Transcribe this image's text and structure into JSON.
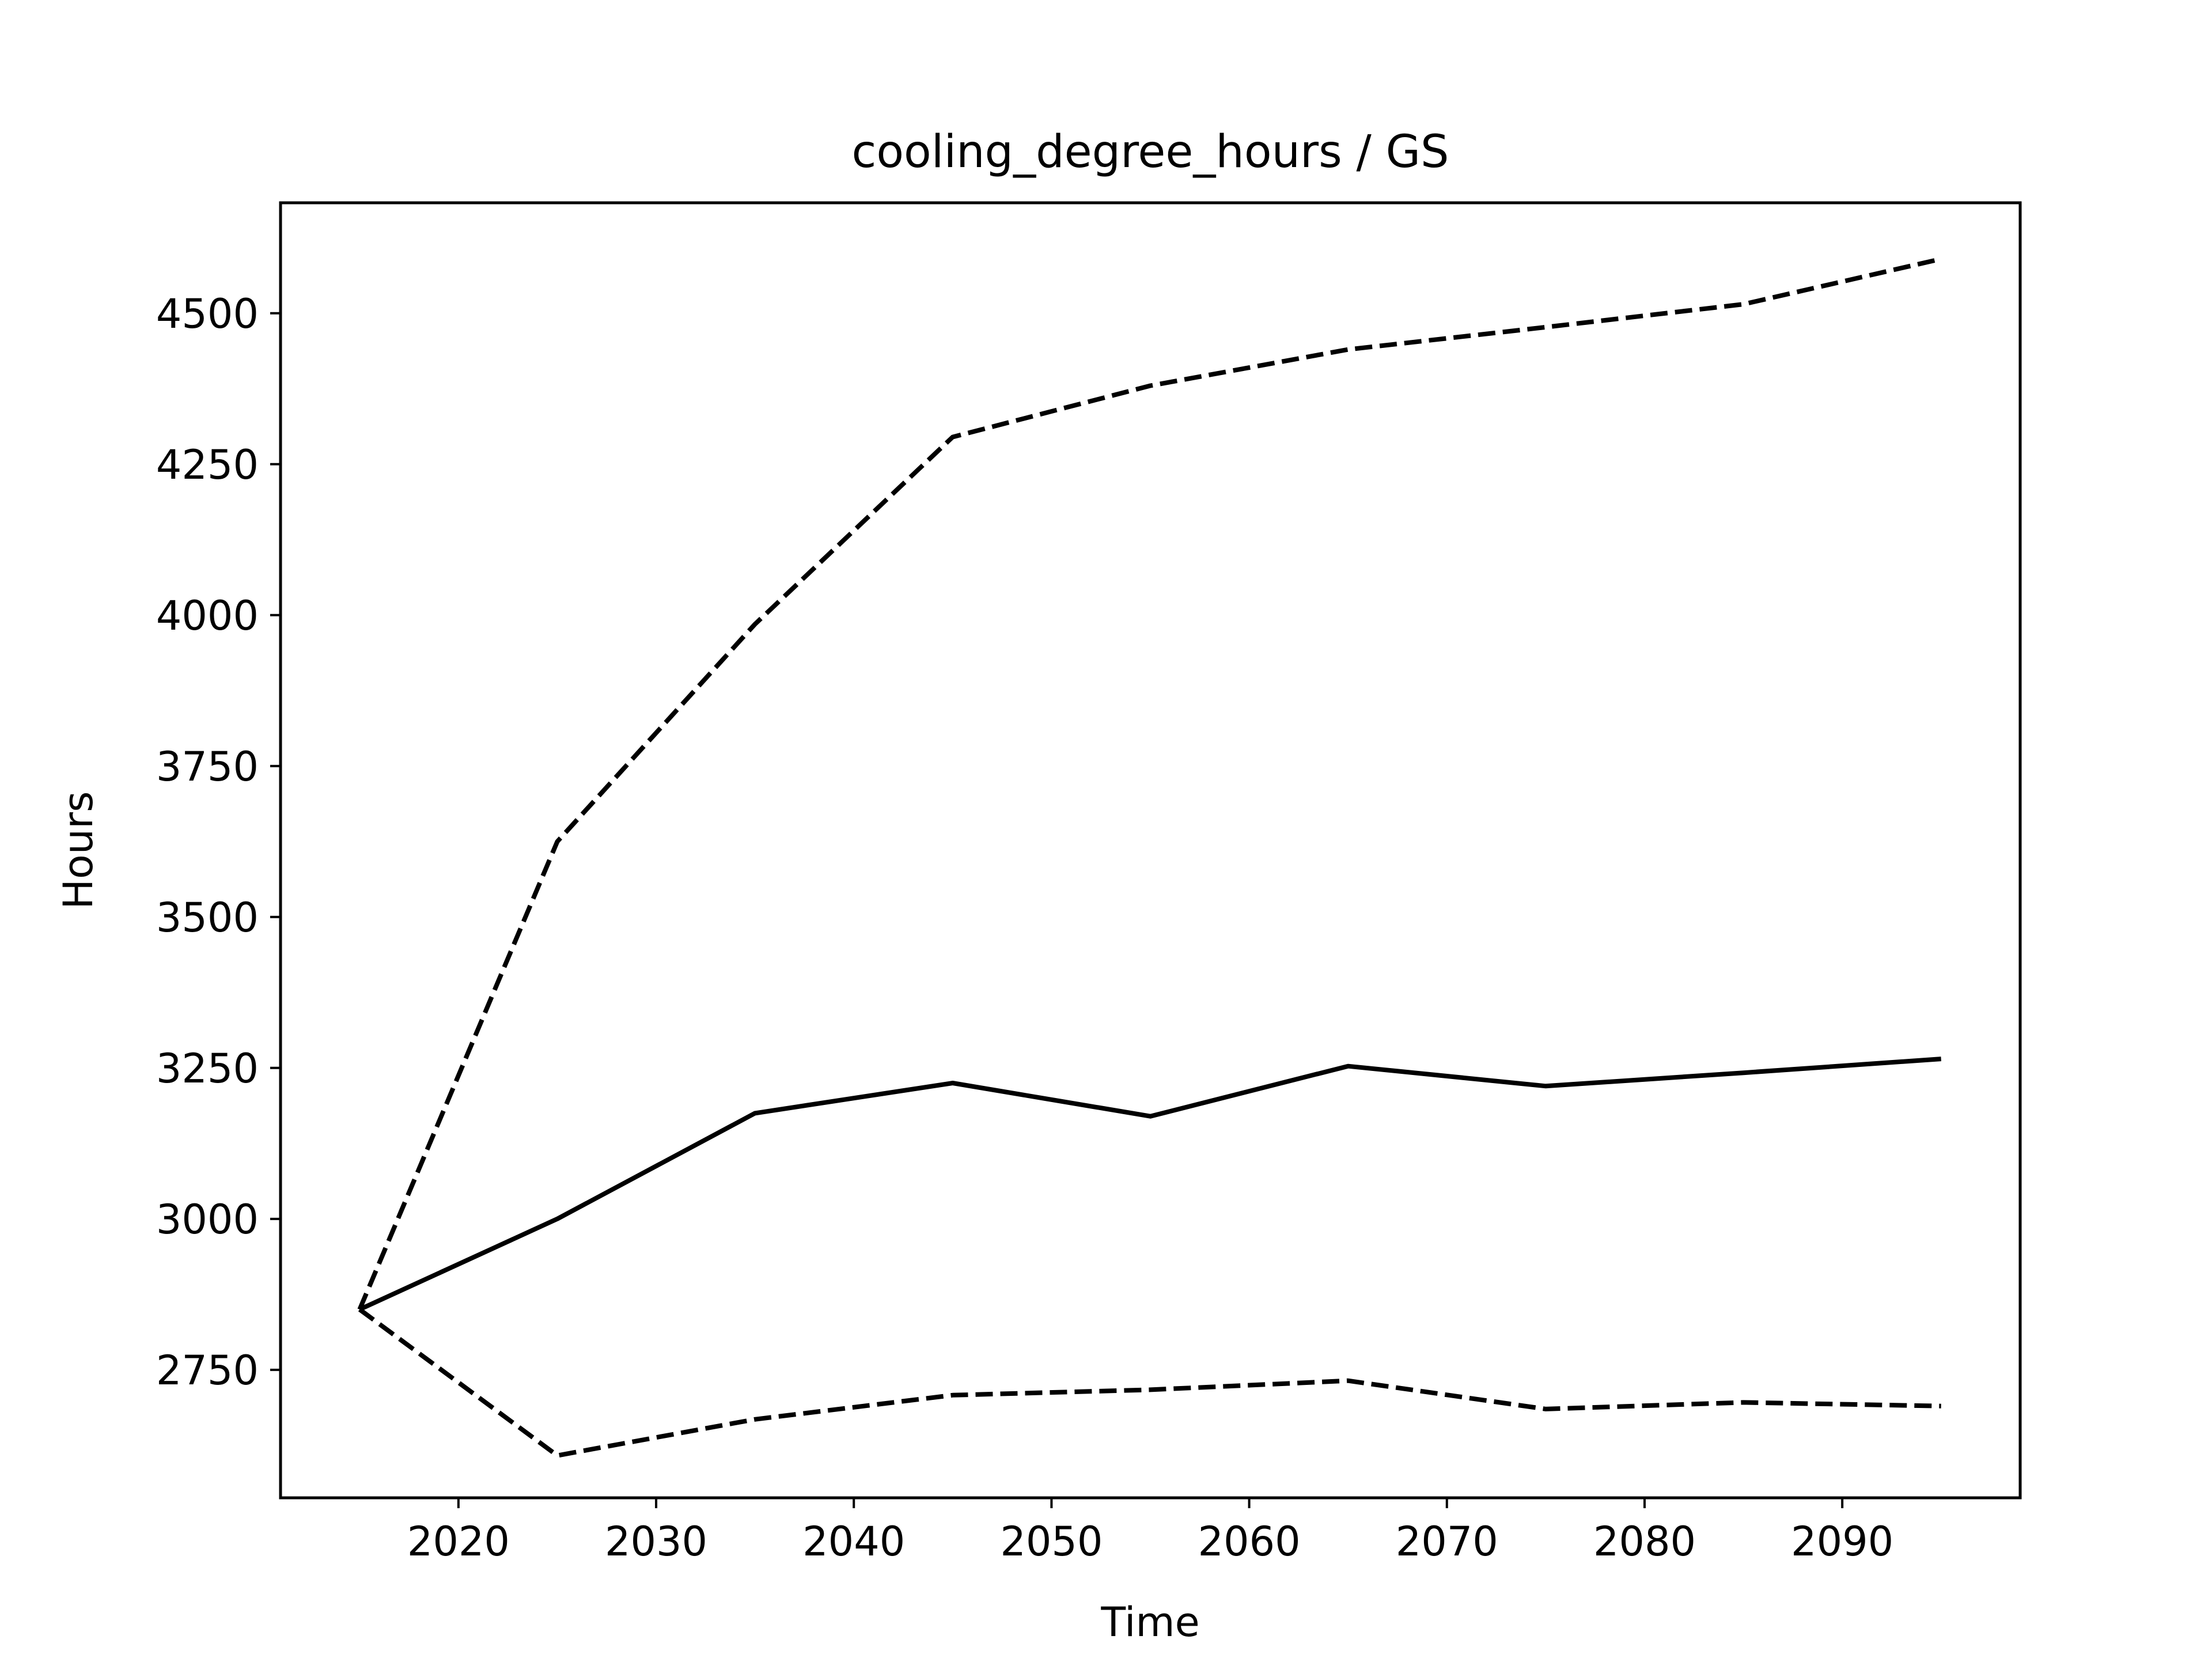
{
  "chart_data": {
    "type": "line",
    "title": "cooling_degree_hours / GS",
    "xlabel": "Time",
    "ylabel": "Hours",
    "x": [
      2015,
      2025,
      2035,
      2045,
      2055,
      2065,
      2075,
      2085,
      2095
    ],
    "series": [
      {
        "style": "solid",
        "color": "#000000",
        "values": [
          2850,
          3000,
          3175,
          3225,
          3170,
          3253,
          3220,
          3242,
          3265
        ]
      },
      {
        "style": "dashed",
        "color": "#000000",
        "values": [
          2850,
          3625,
          3985,
          4295,
          4380,
          4440,
          4477,
          4515,
          4590
        ]
      },
      {
        "style": "dashed",
        "color": "#000000",
        "values": [
          2850,
          2608,
          2668,
          2708,
          2717,
          2732,
          2685,
          2696,
          2690
        ]
      }
    ],
    "xlim": [
      2011,
      2099
    ],
    "ylim": [
      2538,
      4683
    ],
    "xticks": [
      2020,
      2030,
      2040,
      2050,
      2060,
      2070,
      2080,
      2090
    ],
    "yticks": [
      2750,
      3000,
      3250,
      3500,
      3750,
      4000,
      4250,
      4500
    ],
    "grid": false,
    "legend": false
  }
}
